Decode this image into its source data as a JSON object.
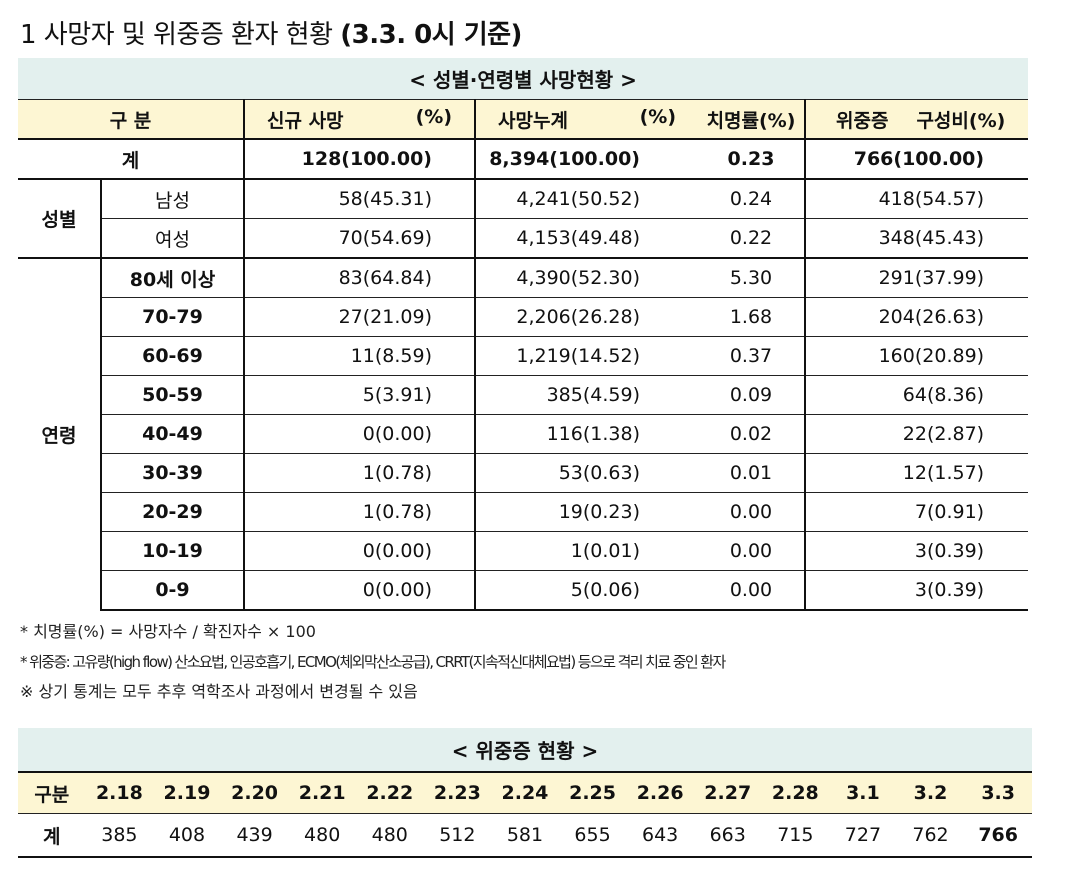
{
  "title": {
    "main": "1 사망자 및 위중증 환자 현황 ",
    "date": "(3.3. 0시 기준)"
  },
  "deaths_table": {
    "caption": "< 성별·연령별 사망현황 >",
    "headers": {
      "division": "구 분",
      "new_deaths": "신규 사망",
      "new_pct": "(%)",
      "cumulative": "사망누계",
      "cum_pct": "(%)",
      "cfr": "치명률(%)",
      "severe": "위중증",
      "severe_ratio": "구성비(%)"
    },
    "total": {
      "label": "계",
      "new": "128(100.00)",
      "cumulative": "8,394(100.00)",
      "cfr": "0.23",
      "severe": "766(100.00)"
    },
    "sex_group_label": "성별",
    "sex_rows": [
      {
        "label": "남성",
        "new": "58(45.31)",
        "cumulative": "4,241(50.52)",
        "cfr": "0.24",
        "severe": "418(54.57)"
      },
      {
        "label": "여성",
        "new": "70(54.69)",
        "cumulative": "4,153(49.48)",
        "cfr": "0.22",
        "severe": "348(45.43)"
      }
    ],
    "age_group_label": "연령",
    "age_rows": [
      {
        "label": "80세 이상",
        "new": "83(64.84)",
        "cumulative": "4,390(52.30)",
        "cfr": "5.30",
        "severe": "291(37.99)"
      },
      {
        "label": "70-79",
        "new": "27(21.09)",
        "cumulative": "2,206(26.28)",
        "cfr": "1.68",
        "severe": "204(26.63)"
      },
      {
        "label": "60-69",
        "new": "11(8.59)",
        "cumulative": "1,219(14.52)",
        "cfr": "0.37",
        "severe": "160(20.89)"
      },
      {
        "label": "50-59",
        "new": "5(3.91)",
        "cumulative": "385(4.59)",
        "cfr": "0.09",
        "severe": "64(8.36)"
      },
      {
        "label": "40-49",
        "new": "0(0.00)",
        "cumulative": "116(1.38)",
        "cfr": "0.02",
        "severe": "22(2.87)"
      },
      {
        "label": "30-39",
        "new": "1(0.78)",
        "cumulative": "53(0.63)",
        "cfr": "0.01",
        "severe": "12(1.57)"
      },
      {
        "label": "20-29",
        "new": "1(0.78)",
        "cumulative": "19(0.23)",
        "cfr": "0.00",
        "severe": "7(0.91)"
      },
      {
        "label": "10-19",
        "new": "0(0.00)",
        "cumulative": "1(0.01)",
        "cfr": "0.00",
        "severe": "3(0.39)"
      },
      {
        "label": "0-9",
        "new": "0(0.00)",
        "cumulative": "5(0.06)",
        "cfr": "0.00",
        "severe": "3(0.39)"
      }
    ]
  },
  "notes": [
    "* 치명률(%) = 사망자수 / 확진자수 × 100",
    "* 위중증: 고유량(high flow) 산소요법, 인공호흡기, ECMO(체외막산소공급), CRRT(지속적신대체요법) 등으로 격리 치료 중인 환자",
    "※ 상기 통계는 모두 추후 역학조사 과정에서 변경될 수 있음"
  ],
  "severe_table": {
    "caption": "< 위중증 현황 >",
    "header_label": "구분",
    "dates": [
      "2.18",
      "2.19",
      "2.20",
      "2.21",
      "2.22",
      "2.23",
      "2.24",
      "2.25",
      "2.26",
      "2.27",
      "2.28",
      "3.1",
      "3.2",
      "3.3"
    ],
    "row_label": "계",
    "values": [
      "385",
      "408",
      "439",
      "480",
      "480",
      "512",
      "581",
      "655",
      "643",
      "663",
      "715",
      "727",
      "762",
      "766"
    ]
  },
  "colors": {
    "caption_bg": "#e3f0ee",
    "header_bg": "#fdf6d3"
  }
}
